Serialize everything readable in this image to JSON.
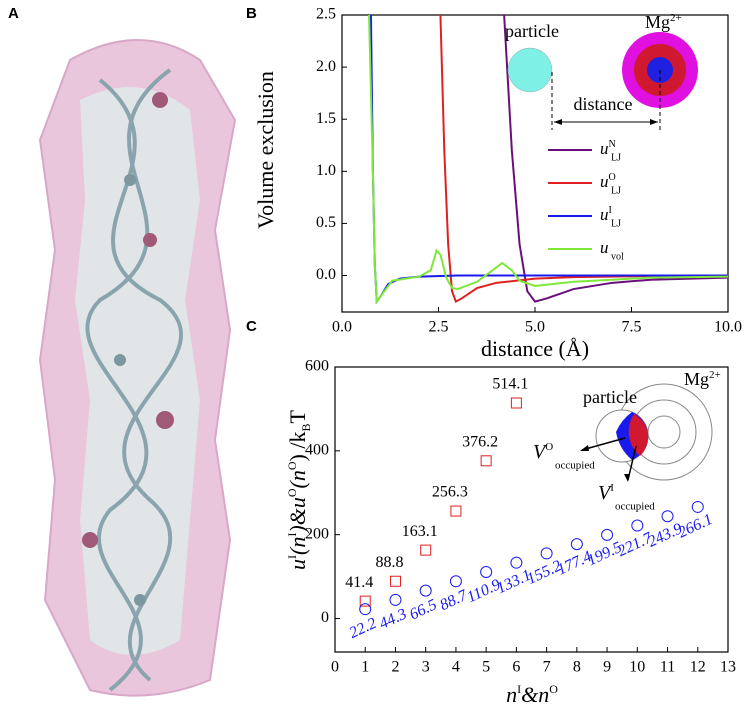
{
  "panel_labels": [
    "A",
    "B",
    "C"
  ],
  "chart_data": [
    {
      "type": "line",
      "y_label": "Volume exclusion",
      "x_label": "distance (Å)",
      "xlim": [
        0,
        10
      ],
      "ylim": [
        -0.35,
        2.5
      ],
      "xticks": [
        {
          "value": 0,
          "label": "0.0"
        },
        2.5,
        {
          "value": 5,
          "label": "5.0"
        },
        7.5,
        {
          "value": 10,
          "label": "10.0"
        }
      ],
      "yticks": [
        {
          "value": 0,
          "label": "0.0"
        },
        0.5,
        {
          "value": 1,
          "label": "1.0"
        },
        1.5,
        {
          "value": 2,
          "label": "2.0"
        },
        2.5
      ],
      "inset": {
        "particle": "particle",
        "ion": [
          "Mg",
          "2+"
        ],
        "distance": "distance"
      },
      "series": [
        {
          "name": "u",
          "sub": "LJ",
          "sup": "N",
          "color": "#6a0f7a",
          "x": [
            4.2,
            4.4,
            4.6,
            4.8,
            5.0,
            5.3,
            6,
            7,
            8,
            10
          ],
          "values": [
            2.5,
            1.2,
            0.3,
            -0.15,
            -0.25,
            -0.22,
            -0.13,
            -0.07,
            -0.04,
            -0.02
          ]
        },
        {
          "name": "u",
          "sub": "LJ",
          "sup": "O",
          "color": "#e02020",
          "x": [
            2.55,
            2.65,
            2.75,
            2.85,
            2.95,
            3.1,
            3.5,
            4,
            5,
            6,
            8,
            10
          ],
          "values": [
            2.5,
            1.2,
            0.3,
            -0.15,
            -0.25,
            -0.22,
            -0.12,
            -0.07,
            -0.03,
            -0.015,
            -0.005,
            0
          ]
        },
        {
          "name": "u",
          "sub": "LJ",
          "sup": "I",
          "color": "#1a1aee",
          "x": [
            0.75,
            0.8,
            0.85,
            0.9,
            1.0,
            1.2,
            1.5,
            2,
            3,
            6,
            10
          ],
          "values": [
            2.5,
            1.0,
            0.1,
            -0.25,
            -0.2,
            -0.08,
            -0.03,
            -0.01,
            0,
            0,
            0
          ]
        },
        {
          "name": "u",
          "sub": "vol",
          "color": "#7ee83a",
          "x": [
            0.7,
            0.8,
            0.85,
            0.9,
            1.0,
            1.3,
            2,
            2.3,
            2.45,
            2.55,
            2.7,
            2.85,
            3,
            3.5,
            3.9,
            4.15,
            4.4,
            4.6,
            5,
            6,
            7,
            8,
            10
          ],
          "values": [
            2.5,
            1.0,
            0.1,
            -0.25,
            -0.2,
            -0.05,
            -0.01,
            0.05,
            0.24,
            0.2,
            -0.02,
            -0.12,
            -0.13,
            -0.06,
            0.05,
            0.12,
            0.05,
            -0.05,
            -0.1,
            -0.06,
            -0.04,
            -0.02,
            -0.01
          ]
        }
      ]
    },
    {
      "type": "scatter",
      "y_label": [
        "u",
        "I",
        "(n",
        "I",
        ")&u",
        "O",
        "(n",
        "O",
        ") /k",
        "B",
        "T"
      ],
      "x_label": [
        "n",
        "I",
        "&n",
        "O"
      ],
      "xlim": [
        0,
        13
      ],
      "ylim": [
        -80,
        600
      ],
      "xticks": [
        0,
        1,
        2,
        3,
        4,
        5,
        6,
        7,
        8,
        9,
        10,
        11,
        12,
        13
      ],
      "yticks": [
        0,
        200,
        400,
        600
      ],
      "inset": {
        "particle": "particle",
        "ion": [
          "Mg",
          "2+"
        ],
        "outer": [
          "V",
          "O",
          "occupied"
        ],
        "inner": [
          "V",
          "I",
          "occupied"
        ]
      },
      "series": [
        {
          "marker": "square",
          "color": "#e02020",
          "x": [
            1,
            2,
            3,
            4,
            5,
            6
          ],
          "values": [
            41.4,
            88.8,
            163.1,
            256.3,
            376.2,
            514.1
          ]
        },
        {
          "marker": "circle",
          "color": "#1a1aee",
          "x": [
            1,
            2,
            3,
            4,
            5,
            6,
            7,
            8,
            9,
            10,
            11,
            12
          ],
          "values": [
            22.2,
            44.3,
            66.5,
            88.7,
            110.9,
            133.1,
            155.2,
            177.4,
            199.5,
            221.7,
            243.9,
            266.1
          ]
        }
      ]
    }
  ]
}
